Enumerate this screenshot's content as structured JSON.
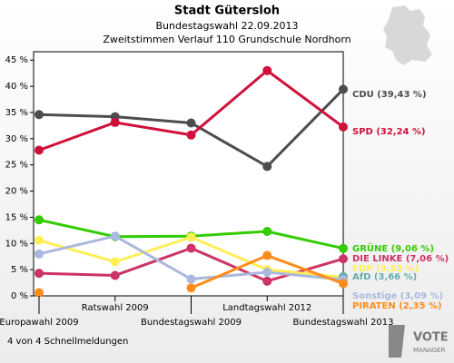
{
  "chart_data": {
    "type": "line",
    "title": "Stadt Gütersloh",
    "subtitle": "Bundestagswahl 22.09.2013",
    "subtitle2": "Zweitstimmen Verlauf 110 Grundschule Nordhorn",
    "footer": "4 von 4 Schnellmeldungen",
    "categories": [
      "Europawahl 2009",
      "Ratswahl 2009",
      "Bundestagswahl 2009",
      "Landtagswahl 2012",
      "Bundestagswahl 2013"
    ],
    "ylim": [
      0,
      46.6
    ],
    "yticks": [
      {
        "value": 0,
        "label": "0 %"
      },
      {
        "value": 5,
        "label": "5 %"
      },
      {
        "value": 10,
        "label": "10 %"
      },
      {
        "value": 15,
        "label": "15 %"
      },
      {
        "value": 20,
        "label": "20 %"
      },
      {
        "value": 25,
        "label": "25 %"
      },
      {
        "value": 30,
        "label": "30 %"
      },
      {
        "value": 35,
        "label": "35 %"
      },
      {
        "value": 40,
        "label": "40 %"
      },
      {
        "value": 45,
        "label": "45 %"
      }
    ],
    "grid": false,
    "series": [
      {
        "name": "CDU (39,43 %)",
        "color": "#4d4d4d",
        "values": [
          34.6,
          34.2,
          33.0,
          24.7,
          39.43
        ]
      },
      {
        "name": "SPD (32,24 %)",
        "color": "#d0103a",
        "values": [
          27.8,
          33.1,
          30.7,
          43.0,
          32.24
        ]
      },
      {
        "name": "GRÜNE (9,06 %)",
        "color": "#33cc00",
        "values": [
          14.5,
          11.3,
          11.4,
          12.3,
          9.06
        ]
      },
      {
        "name": "DIE LINKE (7,06 %)",
        "color": "#cc3366",
        "values": [
          4.3,
          3.9,
          9.1,
          2.8,
          7.06
        ]
      },
      {
        "name": "FDP (3,53 %)",
        "color": "#ffee55",
        "values": [
          10.6,
          6.5,
          11.2,
          5.0,
          3.53
        ]
      },
      {
        "name": "AfD (3,66 %)",
        "color": "#66aaaa",
        "values": [
          null,
          null,
          null,
          null,
          3.66
        ]
      },
      {
        "name": "Sonstige (3,09 %)",
        "color": "#aab8dd",
        "values": [
          8.0,
          11.4,
          3.2,
          4.5,
          3.09
        ]
      },
      {
        "name": "PIRATEN (2,35 %)",
        "color": "#ff8c1a",
        "values": [
          0.6,
          null,
          1.5,
          7.7,
          2.35
        ]
      }
    ]
  }
}
